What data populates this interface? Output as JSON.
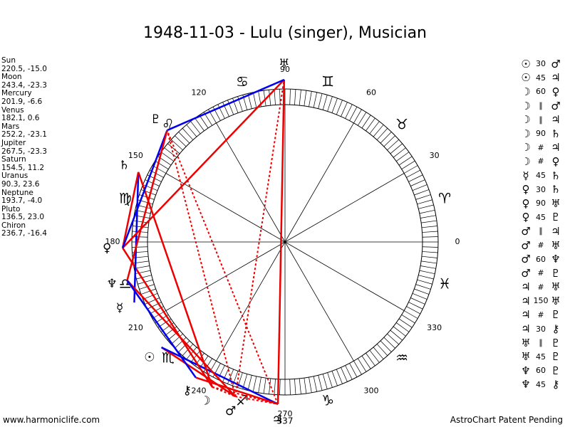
{
  "title": "1948-11-03 - Lulu (singer), Musician",
  "planets": [
    {
      "name": "Sun",
      "glyph": "☉",
      "position": "220.5, -15.0"
    },
    {
      "name": "Moon",
      "glyph": "☽",
      "position": "243.4, -23.3"
    },
    {
      "name": "Mercury",
      "glyph": "☿",
      "position": "201.9, -6.6"
    },
    {
      "name": "Venus",
      "glyph": "♀",
      "position": "182.1, 0.6"
    },
    {
      "name": "Mars",
      "glyph": "♂",
      "position": "252.2, -23.1"
    },
    {
      "name": "Jupiter",
      "glyph": "♃",
      "position": "267.5, -23.3"
    },
    {
      "name": "Saturn",
      "glyph": "♄",
      "position": "154.5, 11.2"
    },
    {
      "name": "Uranus",
      "glyph": "♅",
      "position": "90.3, 23.6"
    },
    {
      "name": "Neptune",
      "glyph": "♆",
      "position": "193.7, -4.0"
    },
    {
      "name": "Pluto",
      "glyph": "♇",
      "position": "136.5, 23.0"
    },
    {
      "name": "Chiron",
      "glyph": "⚷",
      "position": "236.7, -16.4"
    }
  ],
  "aspects": [
    [
      "☉",
      "30",
      "♂"
    ],
    [
      "☉",
      "45",
      "♃"
    ],
    [
      "☽",
      "60",
      "♀"
    ],
    [
      "☽",
      "∥",
      "♂"
    ],
    [
      "☽",
      "∥",
      "♃"
    ],
    [
      "☽",
      "90",
      "♄"
    ],
    [
      "☽",
      "#",
      "♃"
    ],
    [
      "☽",
      "#",
      "♀"
    ],
    [
      "☿",
      "45",
      "♄"
    ],
    [
      "♀",
      "30",
      "♄"
    ],
    [
      "♀",
      "90",
      "♅"
    ],
    [
      "♀",
      "45",
      "♇"
    ],
    [
      "♂",
      "∥",
      "♃"
    ],
    [
      "♂",
      "#",
      "♅"
    ],
    [
      "♂",
      "60",
      "♆"
    ],
    [
      "♂",
      "#",
      "♇"
    ],
    [
      "♃",
      "#",
      "♅"
    ],
    [
      "♃",
      "150",
      "♅"
    ],
    [
      "♃",
      "#",
      "♇"
    ],
    [
      "♃",
      "30",
      "⚷"
    ],
    [
      "♅",
      "∥",
      "♇"
    ],
    [
      "♅",
      "45",
      "♇"
    ],
    [
      "♆",
      "60",
      "♇"
    ],
    [
      "♆",
      "45",
      "⚷"
    ]
  ],
  "signs": [
    "♈",
    "♉",
    "♊",
    "♋",
    "♌",
    "♍",
    "♎",
    "♏",
    "♐",
    "♑",
    "♒",
    "♓"
  ],
  "degree_labels": [
    0,
    30,
    60,
    90,
    120,
    150,
    180,
    210,
    240,
    270,
    300,
    330
  ],
  "ascendant_label": "337",
  "footer": {
    "left": "www.harmoniclife.com",
    "right": "AstroChart Patent Pending"
  }
}
